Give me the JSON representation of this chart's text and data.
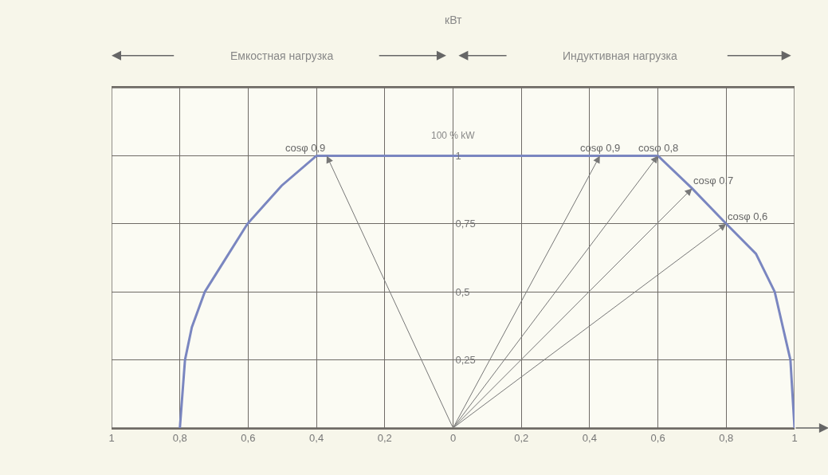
{
  "chart_data": {
    "type": "line",
    "x": [
      -0.8,
      -0.785,
      -0.765,
      -0.727,
      -0.672,
      -0.602,
      -0.502,
      -0.4,
      0.43,
      0.6,
      0.7,
      0.8,
      0.887,
      0.942,
      0.988,
      1
    ],
    "series": [
      {
        "color": "#7a86c0",
        "values": [
          0,
          0.25,
          0.37,
          0.5,
          0.61,
          0.75,
          0.89,
          1,
          1,
          1,
          0.88,
          0.75,
          0.64,
          0.5,
          0.25,
          0
        ]
      }
    ],
    "xlim": [
      -1,
      1
    ],
    "ylim": [
      0,
      1.25
    ],
    "xticks": [
      {
        "value": -1,
        "label": "1"
      },
      {
        "value": -0.8,
        "label": "0,8"
      },
      {
        "value": -0.6,
        "label": "0,6"
      },
      {
        "value": -0.4,
        "label": "0,4"
      },
      {
        "value": -0.2,
        "label": "0,2"
      },
      0,
      {
        "value": 0.2,
        "label": "0,2"
      },
      {
        "value": 0.4,
        "label": "0,4"
      },
      {
        "value": 0.6,
        "label": "0,6"
      },
      {
        "value": 0.8,
        "label": "0,8"
      },
      1
    ],
    "yticks": [
      {
        "value": 0.25,
        "label": "0,25"
      },
      {
        "value": 0.5,
        "label": "0,5"
      },
      {
        "value": 0.75,
        "label": "0,75"
      },
      1
    ],
    "grid": true,
    "legend": false,
    "marker": "none",
    "line_style": "solid",
    "annotations": [
      "Емкостная нагрузка",
      "кВт",
      "Индуктивная нагрузка",
      "100 % kW",
      {
        "text": "cosφ 0,9",
        "x": -0.37,
        "y": 1
      },
      {
        "text": "cosφ 0,9",
        "x": 0.43,
        "y": 1
      },
      {
        "text": "cosφ 0,8",
        "x": 0.6,
        "y": 1
      },
      {
        "text": "cosφ 0,7",
        "x": 0.7,
        "y": 0.88
      },
      {
        "text": "cosφ 0,6",
        "x": 0.8,
        "y": 0.75
      }
    ]
  }
}
